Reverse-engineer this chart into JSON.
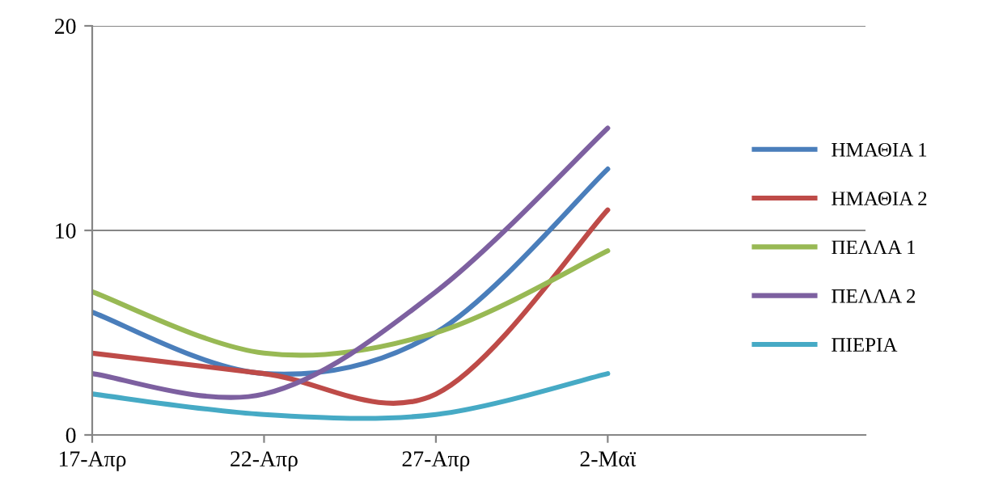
{
  "chart_data": {
    "type": "line",
    "categories": [
      "17-Απρ",
      "22-Απρ",
      "27-Απρ",
      "2-Μαϊ"
    ],
    "series": [
      {
        "name": "ΗΜΑΘΙΑ 1",
        "color": "#4a7ebb",
        "values": [
          6,
          3,
          5,
          13
        ]
      },
      {
        "name": "ΗΜΑΘΙΑ 2",
        "color": "#be4b48",
        "values": [
          4,
          3,
          2,
          11
        ]
      },
      {
        "name": "ΠΕΛΛΑ 1",
        "color": "#98b954",
        "values": [
          7,
          4,
          5,
          9
        ]
      },
      {
        "name": "ΠΕΛΛΑ 2",
        "color": "#7d60a0",
        "values": [
          3,
          2,
          7,
          15
        ]
      },
      {
        "name": "ΠΙΕΡΙΑ",
        "color": "#46aac5",
        "values": [
          2,
          1,
          1,
          3
        ]
      }
    ],
    "ylim": [
      0,
      20
    ],
    "yticks": [
      0,
      10,
      20
    ],
    "grid": "y",
    "legend": "right",
    "marker": "none",
    "line_style": "solid"
  }
}
